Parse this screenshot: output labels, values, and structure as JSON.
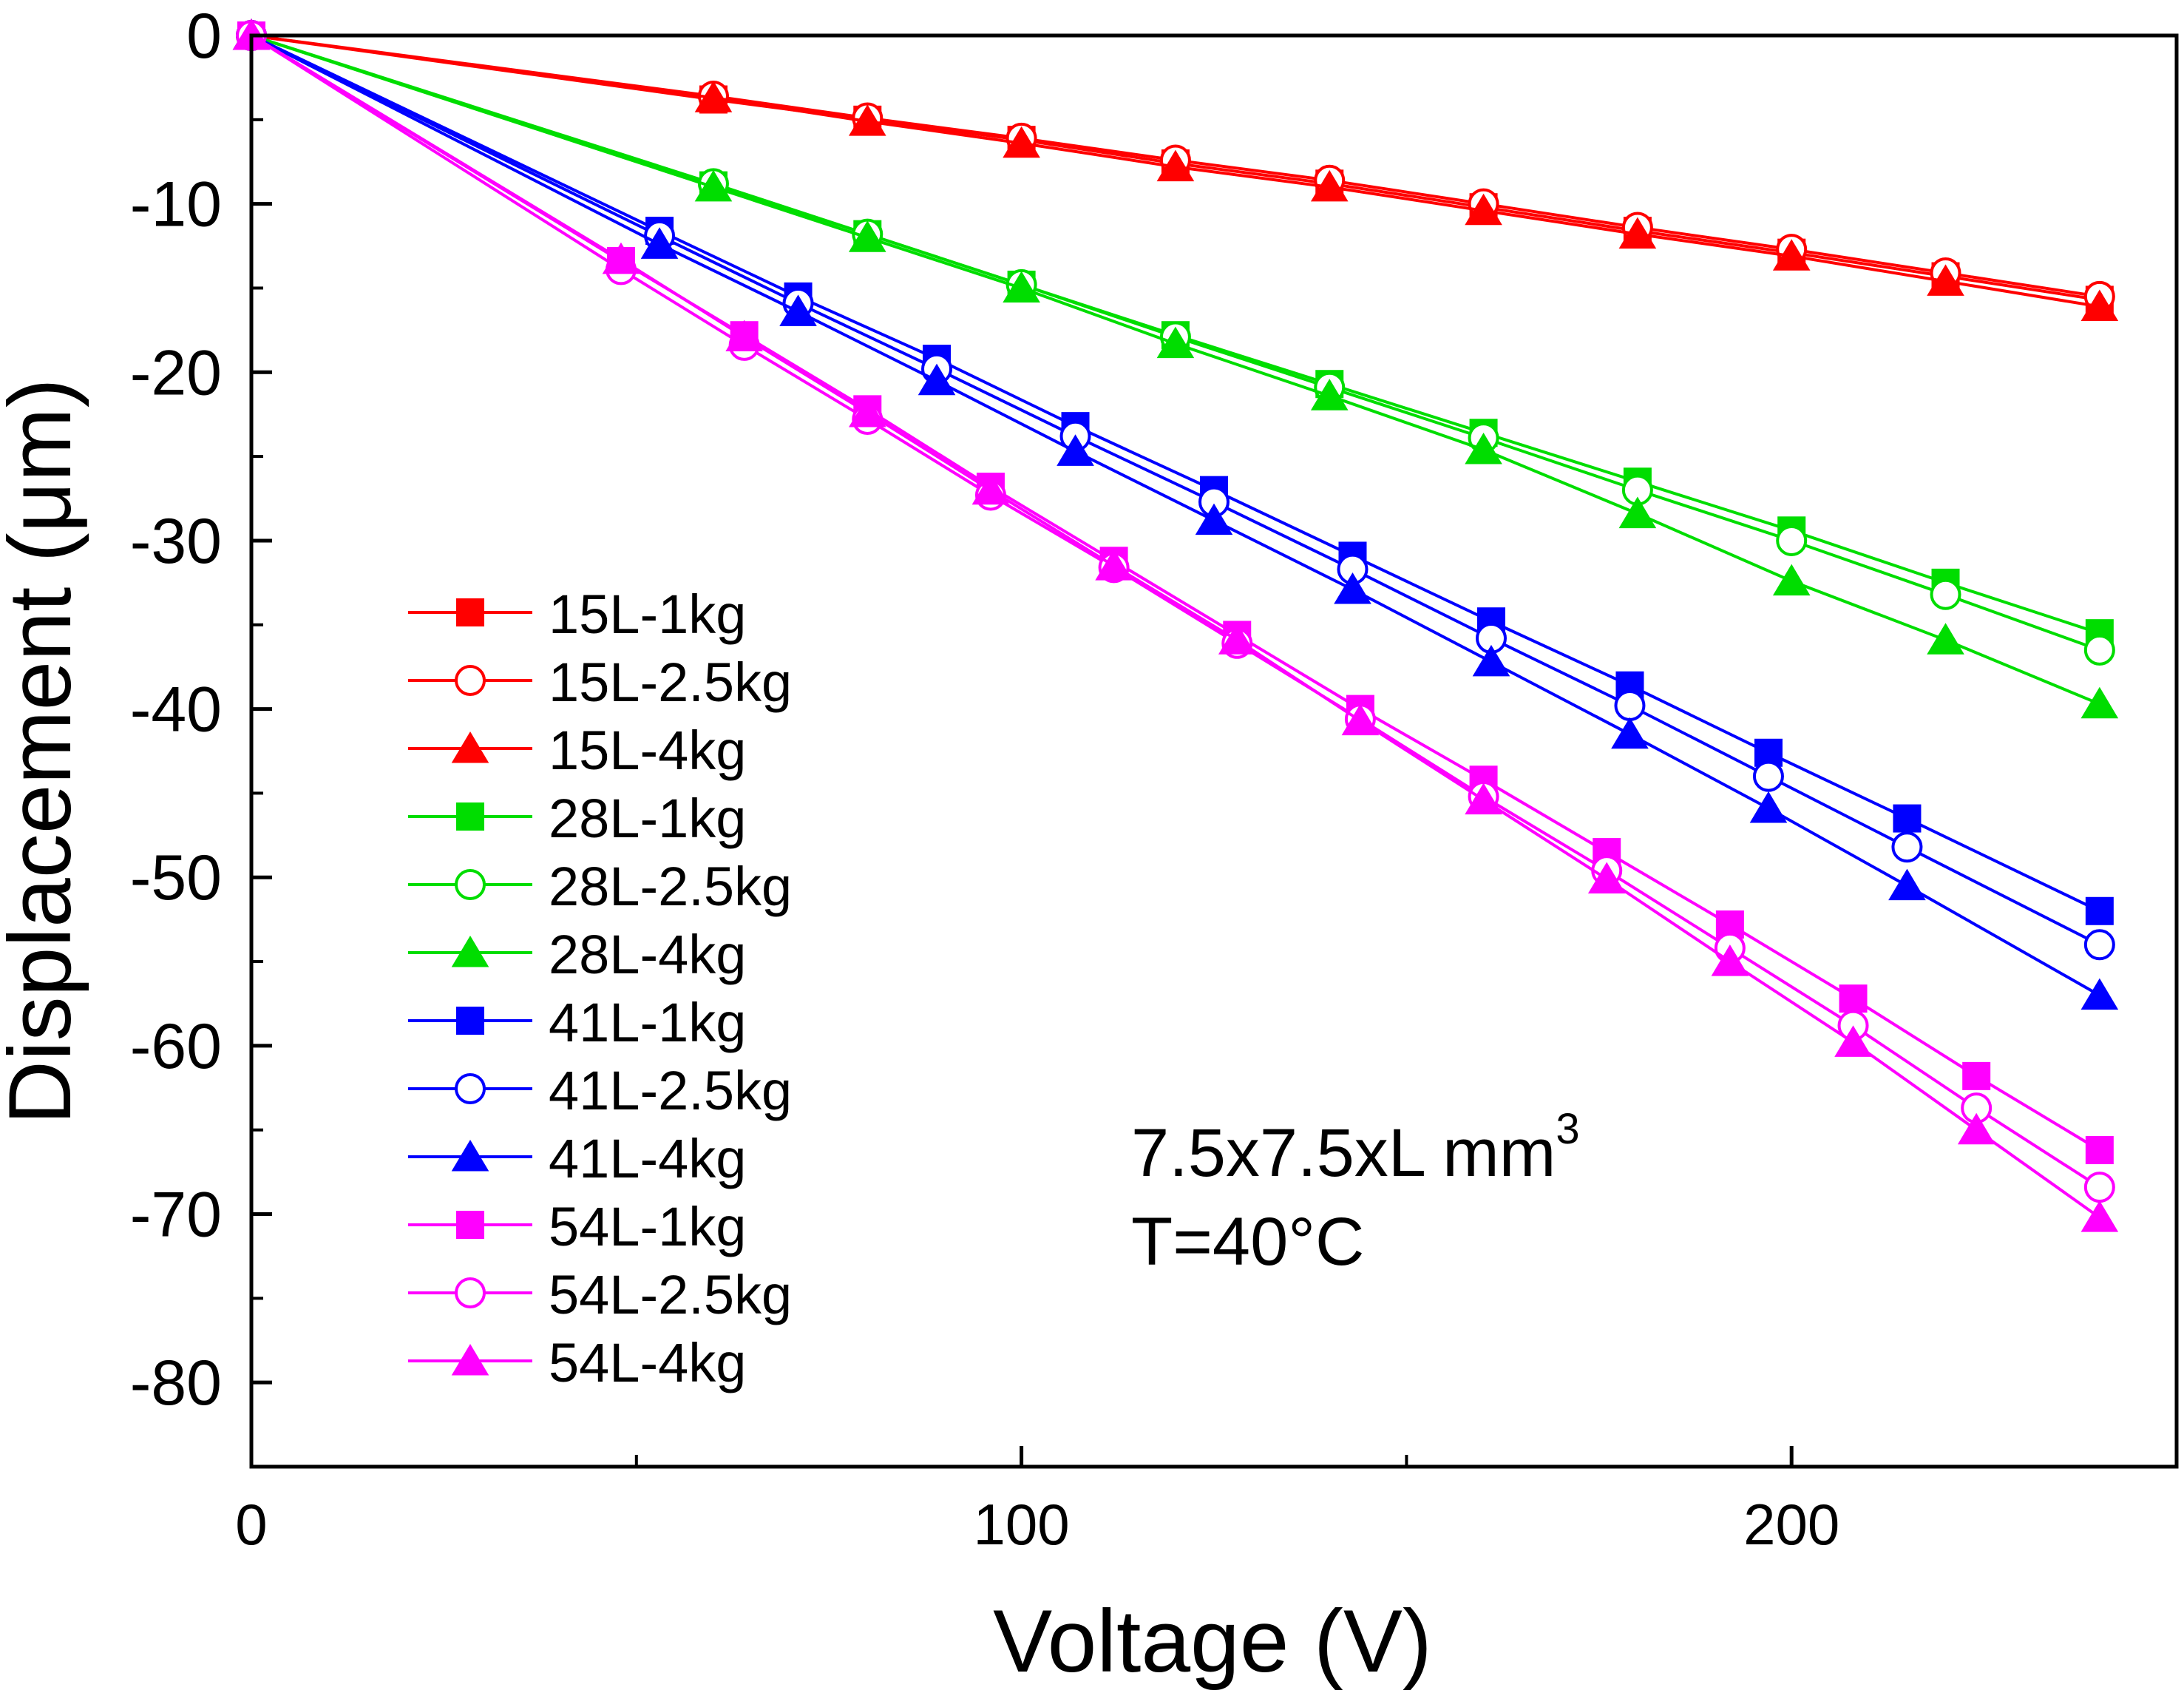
{
  "chart_data": {
    "type": "line",
    "title": "",
    "xlabel": "Voltage (V)",
    "ylabel": "Displacement (μm)",
    "xlim": [
      0,
      250
    ],
    "ylim": [
      -85,
      0
    ],
    "xticks": [
      0,
      100,
      200
    ],
    "xtick_labels": [
      "0",
      "100",
      "200"
    ],
    "yticks": [
      0,
      -10,
      -20,
      -30,
      -40,
      -50,
      -60,
      -70,
      -80
    ],
    "ytick_labels": [
      "0",
      "-10",
      "-20",
      "-30",
      "-40",
      "-50",
      "-60",
      "-70",
      "-80"
    ],
    "grid": false,
    "legend_position": "left-middle",
    "annotation": {
      "line1_base": "7.5x7.5xL mm",
      "line1_sup": "3",
      "line2": "T=40°C"
    },
    "colors": {
      "15L": "#ff0000",
      "28L": "#00dd00",
      "41L": "#0000ff",
      "54L": "#ff00ff"
    },
    "series": [
      {
        "name": "15L-1kg",
        "color": "#ff0000",
        "marker": "square",
        "x": [
          0,
          60,
          80,
          100,
          120,
          140,
          160,
          180,
          200,
          220,
          240
        ],
        "y": [
          0,
          -3.8,
          -5.0,
          -6.2,
          -7.6,
          -8.8,
          -10.2,
          -11.6,
          -12.9,
          -14.3,
          -15.7
        ]
      },
      {
        "name": "15L-2.5kg",
        "color": "#ff0000",
        "marker": "circle",
        "x": [
          0,
          60,
          80,
          100,
          120,
          140,
          160,
          180,
          200,
          220,
          240
        ],
        "y": [
          0,
          -3.6,
          -4.9,
          -6.1,
          -7.4,
          -8.6,
          -10.0,
          -11.4,
          -12.7,
          -14.1,
          -15.5
        ]
      },
      {
        "name": "15L-4kg",
        "color": "#ff0000",
        "marker": "triangle",
        "x": [
          0,
          60,
          80,
          100,
          120,
          140,
          160,
          180,
          200,
          220,
          240
        ],
        "y": [
          0,
          -3.7,
          -5.1,
          -6.4,
          -7.8,
          -9.0,
          -10.4,
          -11.8,
          -13.1,
          -14.6,
          -16.1
        ]
      },
      {
        "name": "28L-1kg",
        "color": "#00dd00",
        "marker": "square",
        "x": [
          0,
          60,
          80,
          100,
          120,
          140,
          160,
          180,
          200,
          220,
          240
        ],
        "y": [
          0,
          -8.9,
          -11.8,
          -14.8,
          -17.8,
          -20.7,
          -23.6,
          -26.5,
          -29.4,
          -32.5,
          -35.5
        ]
      },
      {
        "name": "28L-2.5kg",
        "color": "#00dd00",
        "marker": "circle",
        "x": [
          0,
          60,
          80,
          100,
          120,
          140,
          160,
          180,
          200,
          220,
          240
        ],
        "y": [
          0,
          -8.8,
          -11.8,
          -14.8,
          -17.9,
          -20.9,
          -23.9,
          -27.0,
          -30.0,
          -33.2,
          -36.5
        ]
      },
      {
        "name": "28L-4kg",
        "color": "#00dd00",
        "marker": "triangle",
        "x": [
          0,
          60,
          80,
          100,
          120,
          140,
          160,
          180,
          200,
          220,
          240
        ],
        "y": [
          0,
          -9.0,
          -12.0,
          -15.0,
          -18.3,
          -21.4,
          -24.6,
          -28.4,
          -32.4,
          -35.9,
          -39.7
        ]
      },
      {
        "name": "41L-1kg",
        "color": "#0000ff",
        "marker": "square",
        "x": [
          0,
          53,
          71,
          89,
          107,
          125,
          143,
          161,
          179,
          197,
          215,
          240
        ],
        "y": [
          0,
          -11.6,
          -15.5,
          -19.2,
          -23.2,
          -27.0,
          -30.9,
          -34.8,
          -38.6,
          -42.6,
          -46.5,
          -52.0
        ]
      },
      {
        "name": "41L-2.5kg",
        "color": "#0000ff",
        "marker": "circle",
        "x": [
          0,
          53,
          71,
          89,
          107,
          125,
          143,
          161,
          179,
          197,
          215,
          240
        ],
        "y": [
          0,
          -11.9,
          -15.9,
          -19.8,
          -23.8,
          -27.7,
          -31.7,
          -35.8,
          -39.8,
          -44.0,
          -48.2,
          -54.0
        ]
      },
      {
        "name": "41L-4kg",
        "color": "#0000ff",
        "marker": "triangle",
        "x": [
          0,
          53,
          71,
          89,
          107,
          125,
          143,
          161,
          179,
          197,
          215,
          240
        ],
        "y": [
          0,
          -12.4,
          -16.4,
          -20.5,
          -24.7,
          -28.8,
          -32.9,
          -37.2,
          -41.5,
          -45.9,
          -50.5,
          -57.0
        ]
      },
      {
        "name": "54L-1kg",
        "color": "#ff00ff",
        "marker": "square",
        "x": [
          0,
          48,
          64,
          80,
          96,
          112,
          128,
          144,
          160,
          176,
          192,
          208,
          224,
          240
        ],
        "y": [
          0,
          -13.4,
          -17.8,
          -22.2,
          -26.8,
          -31.2,
          -35.6,
          -40.0,
          -44.2,
          -48.5,
          -52.8,
          -57.2,
          -61.8,
          -66.2
        ]
      },
      {
        "name": "54L-2.5kg",
        "color": "#ff00ff",
        "marker": "circle",
        "x": [
          0,
          48,
          64,
          80,
          96,
          112,
          128,
          144,
          160,
          176,
          192,
          208,
          224,
          240
        ],
        "y": [
          0,
          -13.9,
          -18.4,
          -22.8,
          -27.3,
          -31.6,
          -36.1,
          -40.6,
          -45.2,
          -49.6,
          -54.2,
          -58.8,
          -63.7,
          -68.4
        ]
      },
      {
        "name": "54L-4kg",
        "color": "#ff00ff",
        "marker": "triangle",
        "x": [
          0,
          48,
          64,
          80,
          96,
          112,
          128,
          144,
          160,
          176,
          192,
          208,
          224,
          240
        ],
        "y": [
          0,
          -13.3,
          -17.9,
          -22.4,
          -27.0,
          -31.5,
          -35.9,
          -40.7,
          -45.4,
          -50.1,
          -55.0,
          -59.8,
          -65.0,
          -70.2
        ]
      }
    ]
  }
}
